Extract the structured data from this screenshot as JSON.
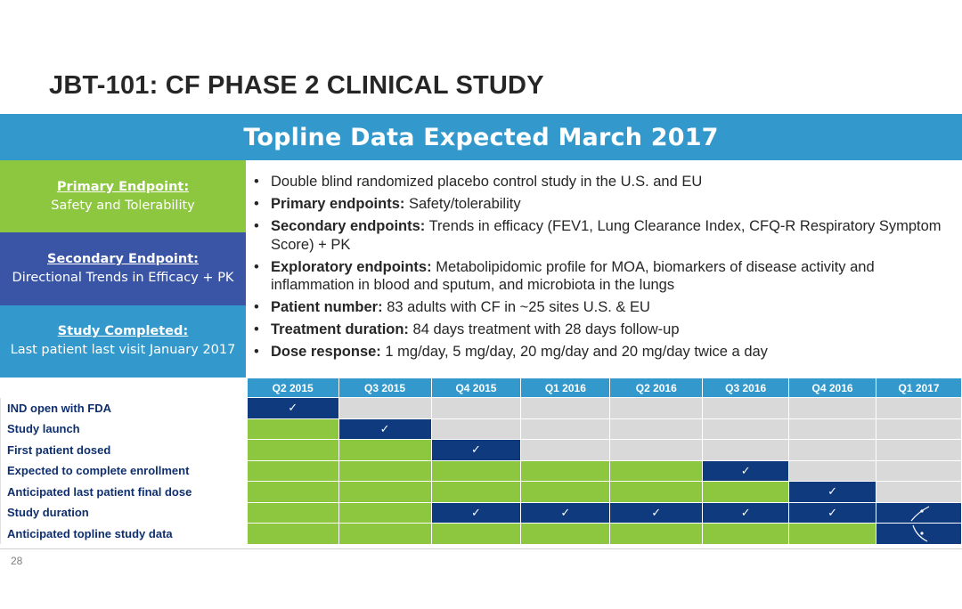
{
  "title": "JBT-101: CF PHASE 2 CLINICAL STUDY",
  "banner": "Topline Data Expected March 2017",
  "endpoints": [
    {
      "heading": "Primary Endpoint:",
      "text": "Safety and Tolerability",
      "color": "#8DC63F"
    },
    {
      "heading": "Secondary Endpoint:",
      "text": "Directional Trends in Efficacy + PK",
      "color": "#3B55A6"
    },
    {
      "heading": "Study Completed:",
      "text": "Last patient last visit January 2017",
      "color": "#3399CC"
    }
  ],
  "bullets": [
    {
      "bold": "",
      "text": "Double blind randomized placebo control study in the U.S. and EU"
    },
    {
      "bold": "Primary endpoints:",
      "text": " Safety/tolerability"
    },
    {
      "bold": "Secondary endpoints:",
      "text": " Trends in efficacy (FEV1, Lung Clearance Index, CFQ-R Respiratory Symptom Score) + PK"
    },
    {
      "bold": "Exploratory endpoints:",
      "text": " Metabolipidomic profile for MOA, biomarkers of disease activity and inflammation in blood and sputum, and microbiota in the lungs"
    },
    {
      "bold": "Patient number:",
      "text": " 83 adults with CF in ~25 sites U.S. & EU"
    },
    {
      "bold": "Treatment duration:",
      "text": " 84 days treatment with 28 days follow-up"
    },
    {
      "bold": "Dose response:",
      "text": " 1 mg/day, 5 mg/day, 20 mg/day and 20 mg/day twice a day"
    }
  ],
  "timeline": {
    "quarters": [
      "Q2 2015",
      "Q3 2015",
      "Q4 2015",
      "Q1 2016",
      "Q2 2016",
      "Q3 2016",
      "Q4 2016",
      "Q1 2017"
    ],
    "check_mark": "✓",
    "rows": [
      {
        "label": "IND open with FDA",
        "cells": [
          "x",
          "e",
          "e",
          "e",
          "e",
          "e",
          "e",
          "e"
        ]
      },
      {
        "label": "Study launch",
        "cells": [
          "g",
          "x",
          "e",
          "e",
          "e",
          "e",
          "e",
          "e"
        ]
      },
      {
        "label": "First patient dosed",
        "cells": [
          "g",
          "g",
          "x",
          "e",
          "e",
          "e",
          "e",
          "e"
        ]
      },
      {
        "label": "Expected to complete enrollment",
        "cells": [
          "g",
          "g",
          "g",
          "g",
          "g",
          "x",
          "e",
          "e"
        ]
      },
      {
        "label": "Anticipated last patient final dose",
        "cells": [
          "g",
          "g",
          "g",
          "g",
          "g",
          "g",
          "x",
          "e"
        ]
      },
      {
        "label": "Study duration",
        "cells": [
          "g",
          "g",
          "x",
          "x",
          "x",
          "x",
          "x",
          "s"
        ]
      },
      {
        "label": "Anticipated topline study data",
        "cells": [
          "g",
          "g",
          "g",
          "g",
          "g",
          "g",
          "g",
          "s"
        ]
      }
    ],
    "colors": {
      "green": "#8DC63F",
      "navy": "#0F3A7E",
      "gray": "#D9D9D9",
      "header": "#3399CC"
    }
  },
  "page_number": "28"
}
